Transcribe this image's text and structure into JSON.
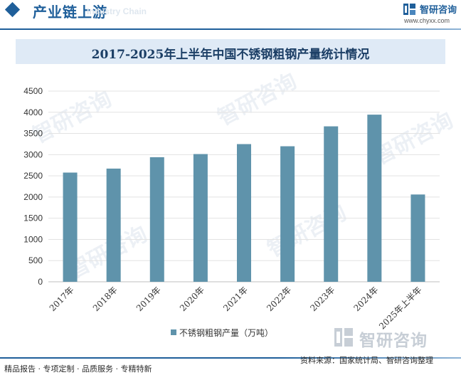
{
  "header": {
    "title": "产业链上游",
    "subtitle": "Industry Chain"
  },
  "brand": {
    "name": "智研咨询",
    "url": "www.chyxx.com"
  },
  "watermark": {
    "text": "智研咨询"
  },
  "footer": {
    "services": "精品报告 · 专项定制 · 品质服务 · 专精特新",
    "source": "资料来源：国家统计局、智研咨询整理"
  },
  "colors": {
    "accent": "#1f5f9a",
    "bar": "#5f93ab",
    "title_band": "#dfeaf6"
  },
  "chart_data": {
    "type": "bar",
    "title": "2017-2025年上半年中国不锈钢粗钢产量统计情况",
    "categories": [
      "2017年",
      "2018年",
      "2019年",
      "2020年",
      "2021年",
      "2022年",
      "2023年",
      "2024年",
      "2025年上半年"
    ],
    "series": [
      {
        "name": "不锈钢粗钢产量（万吨）",
        "values": [
          2577,
          2671,
          2940,
          3014,
          3249,
          3198,
          3668,
          3944,
          2060
        ]
      }
    ],
    "ylim": [
      0,
      4500
    ],
    "yticks": [
      0,
      500,
      1000,
      1500,
      2000,
      2500,
      3000,
      3500,
      4000,
      4500
    ],
    "grid": true,
    "legend": "bottom"
  }
}
